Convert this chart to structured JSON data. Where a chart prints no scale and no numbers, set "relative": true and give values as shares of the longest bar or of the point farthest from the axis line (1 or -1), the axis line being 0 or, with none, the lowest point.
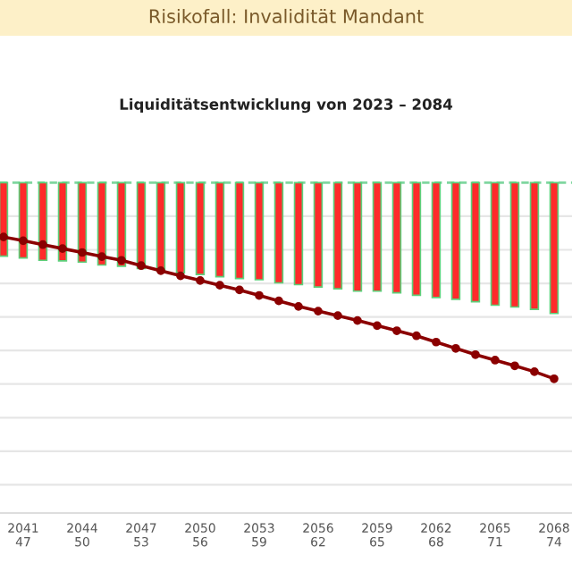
{
  "chart_data": {
    "type": "bar",
    "title": "Risikofall: Invalidität Mandant",
    "subtitle": "Liquiditätsentwicklung von 2023 – 2084",
    "relative": true,
    "grid": "y",
    "categories": [
      null,
      "2041\n47",
      null,
      null,
      "2044\n50",
      null,
      null,
      "2047\n53",
      null,
      null,
      "2050\n56",
      null,
      null,
      "2053\n59",
      null,
      null,
      "2056\n62",
      null,
      null,
      "2059\n65",
      null,
      null,
      "2062\n68",
      null,
      null,
      "2065\n71",
      null,
      null,
      "2068\n74"
    ],
    "series": [
      {
        "color": "#ff2a2a",
        "values": [
          -0.375,
          -0.384,
          -0.396,
          -0.399,
          -0.405,
          -0.42,
          -0.426,
          -0.438,
          -0.45,
          -0.459,
          -0.468,
          -0.48,
          -0.489,
          -0.495,
          -0.511,
          -0.52,
          -0.532,
          -0.541,
          -0.553,
          -0.553,
          -0.562,
          -0.574,
          -0.586,
          -0.595,
          -0.607,
          -0.625,
          -0.634,
          -0.646,
          -0.667
        ]
      },
      {
        "type": "line",
        "color": "#8b0000",
        "marker": "circle",
        "values": [
          -0.277,
          -0.296,
          -0.316,
          -0.336,
          -0.356,
          -0.377,
          -0.396,
          -0.423,
          -0.449,
          -0.475,
          -0.499,
          -0.523,
          -0.547,
          -0.575,
          -0.603,
          -0.631,
          -0.655,
          -0.678,
          -0.703,
          -0.729,
          -0.755,
          -0.781,
          -0.813,
          -0.845,
          -0.877,
          -0.905,
          -0.934,
          -0.964,
          -1
        ]
      }
    ]
  }
}
